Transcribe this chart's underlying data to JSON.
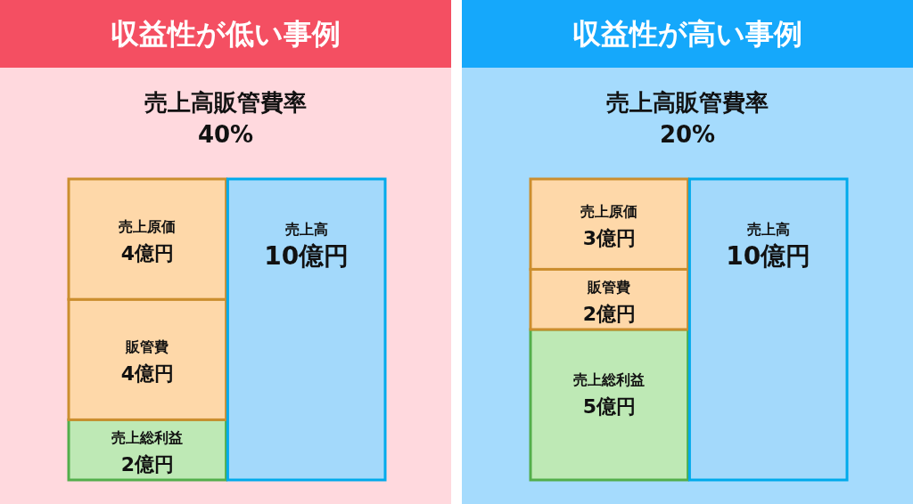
{
  "chart_data": [
    {
      "type": "bar",
      "stacked": true,
      "title": "収益性が低い事例",
      "subtitle": "売上高販管費率\n40%",
      "categories": [
        null,
        null
      ],
      "series": [
        {
          "name": "売上総利益",
          "color": "#bee9b5",
          "values": [
            2,
            null
          ],
          "value_labels": [
            "2億円",
            null
          ]
        },
        {
          "name": "販管費",
          "color": "#fed8a9",
          "values": [
            4,
            null
          ],
          "value_labels": [
            "4億円",
            null
          ]
        },
        {
          "name": "売上原価",
          "color": "#fed8a9",
          "values": [
            4,
            null
          ],
          "value_labels": [
            "4億円",
            null
          ]
        },
        {
          "name": "売上高",
          "color": "#a3d9fb",
          "values": [
            null,
            10
          ],
          "value_labels": [
            null,
            "10億円"
          ]
        }
      ]
    },
    {
      "type": "bar",
      "stacked": true,
      "title": "収益性が高い事例",
      "subtitle": "売上高販管費率\n20%",
      "categories": [
        null,
        null
      ],
      "series": [
        {
          "name": "売上総利益",
          "color": "#bee9b5",
          "values": [
            5,
            null
          ],
          "value_labels": [
            "5億円",
            null
          ]
        },
        {
          "name": "販管費",
          "color": "#fed8a9",
          "values": [
            2,
            null
          ],
          "value_labels": [
            "2億円",
            null
          ]
        },
        {
          "name": "売上原価",
          "color": "#fed8a9",
          "values": [
            3,
            null
          ],
          "value_labels": [
            "3億円",
            null
          ]
        },
        {
          "name": "売上高",
          "color": "#a3d9fb",
          "values": [
            null,
            10
          ],
          "value_labels": [
            null,
            "10億円"
          ]
        }
      ]
    }
  ]
}
